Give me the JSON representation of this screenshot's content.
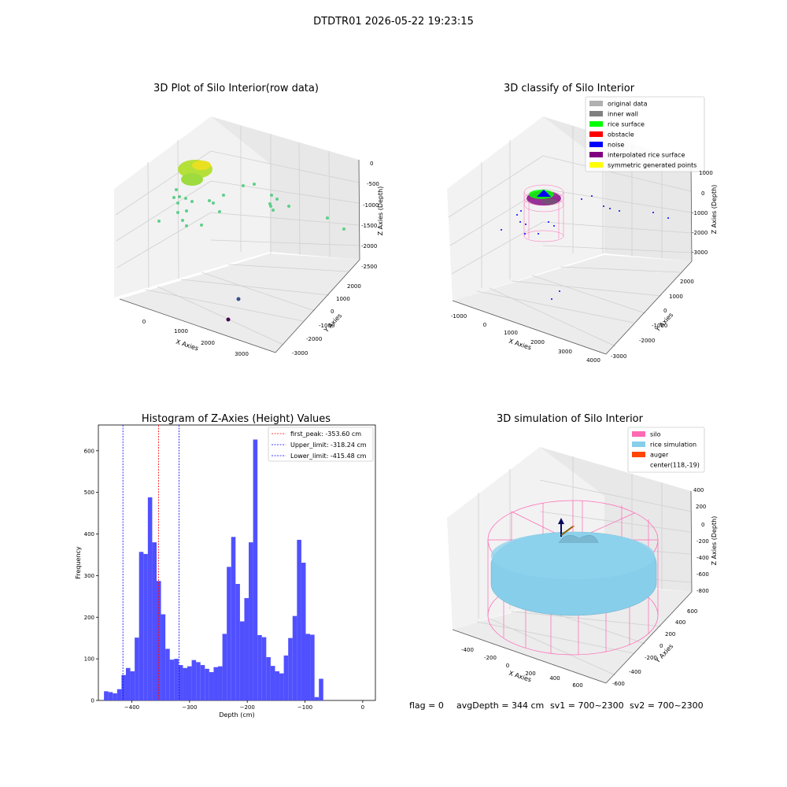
{
  "suptitle": "DTDTR01 2026-05-22 19:23:15",
  "panels": {
    "raw": {
      "title": "3D Plot of Silo Interior(row data)",
      "x_label": "X Axies",
      "y_label": "Y Axies",
      "z_label": "Z Axies (Depth)",
      "x_ticks": [
        "0",
        "1000",
        "2000",
        "3000"
      ],
      "y_ticks": [
        "-3000",
        "-2000",
        "-1000",
        "0",
        "1000",
        "2000"
      ],
      "z_ticks": [
        "0",
        "-500",
        "-1000",
        "-1500",
        "-2000",
        "-2500"
      ]
    },
    "classify": {
      "title": "3D classify of Silo Interior",
      "x_label": "X Axies",
      "y_label": "Y Axies",
      "z_label": "Z Axies (Depth)",
      "x_ticks": [
        "-1000",
        "0",
        "1000",
        "2000",
        "3000",
        "4000"
      ],
      "y_ticks": [
        "-3000",
        "-2000",
        "-1000",
        "0",
        "1000",
        "2000"
      ],
      "z_ticks": [
        "1000",
        "0",
        "-1000",
        "-2000",
        "-3000"
      ],
      "legend": [
        {
          "label": "original data",
          "color": "#b0b0b0"
        },
        {
          "label": "inner wall",
          "color": "#808080"
        },
        {
          "label": "rice surface",
          "color": "#00ff00"
        },
        {
          "label": "obstacle",
          "color": "#ff0000"
        },
        {
          "label": "noise",
          "color": "#0000ff"
        },
        {
          "label": "interpolated rice surface",
          "color": "#800080"
        },
        {
          "label": "symmetric generated points",
          "color": "#ffff00"
        }
      ]
    },
    "simulation": {
      "title": "3D simulation of Silo Interior",
      "x_label": "X Axies",
      "y_label": "Y Axies",
      "z_label": "Z Axies (Depth)",
      "x_ticks": [
        "-400",
        "-200",
        "0",
        "200",
        "400",
        "600"
      ],
      "y_ticks": [
        "-600",
        "-400",
        "-200",
        "0",
        "200",
        "400",
        "600"
      ],
      "z_ticks": [
        "400",
        "200",
        "0",
        "-200",
        "-400",
        "-600",
        "-800"
      ],
      "legend": [
        {
          "label": "silo",
          "color": "#ff69b4"
        },
        {
          "label": "rice simulation",
          "color": "#87ceeb"
        },
        {
          "label": "auger",
          "color": "#ff4500"
        },
        {
          "label": "center(118,-19)",
          "color": "none"
        }
      ]
    }
  },
  "status": {
    "flag": "flag = 0",
    "avg_depth": "avgDepth = 344 cm",
    "sv1": "sv1 = 700~2300",
    "sv2": "sv2 = 700~2300"
  },
  "chart_data": {
    "type": "bar",
    "title": "Histogram of Z-Axies (Height) Values",
    "xlabel": "Depth (cm)",
    "ylabel": "Frequency",
    "bar_color": "#5050ff",
    "xlim": [
      -458,
      22
    ],
    "ylim": [
      0,
      662
    ],
    "x_ticks": [
      -400,
      -300,
      -200,
      -100,
      0
    ],
    "y_ticks": [
      0,
      100,
      200,
      300,
      400,
      500,
      600
    ],
    "bin_start": -448.3,
    "bin_width": 7.6,
    "values": [
      22,
      20,
      17,
      27,
      61,
      78,
      70,
      151,
      357,
      352,
      488,
      380,
      287,
      207,
      124,
      98,
      100,
      85,
      78,
      82,
      97,
      92,
      85,
      76,
      68,
      80,
      82,
      160,
      321,
      393,
      280,
      190,
      246,
      380,
      627,
      157,
      152,
      104,
      83,
      70,
      65,
      108,
      150,
      203,
      386,
      331,
      160,
      158,
      8,
      52
    ],
    "vlines": [
      {
        "x": -353.6,
        "color": "#ff0000",
        "label": "first_peak: -353.60 cm"
      },
      {
        "x": -318.24,
        "color": "#0000ff",
        "label": "Upper_limit: -318.24 cm"
      },
      {
        "x": -415.48,
        "color": "#0000ff",
        "label": "Lower_limit: -415.48 cm"
      }
    ],
    "legend_position": "upper-right"
  }
}
